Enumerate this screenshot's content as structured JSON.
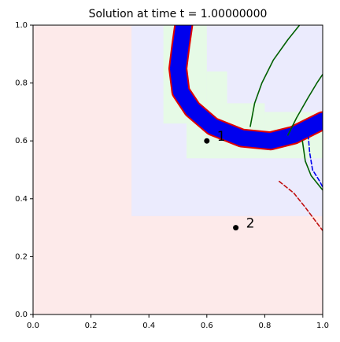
{
  "chart_data": {
    "type": "line",
    "title": "Solution at time t =     1.00000000",
    "xlim": [
      0,
      1
    ],
    "ylim": [
      0,
      1
    ],
    "xticks": [
      {
        "value": 0,
        "label": "0.0"
      },
      0.2,
      0.4,
      0.6,
      0.8,
      {
        "value": 1,
        "label": "1.0"
      }
    ],
    "yticks": [
      {
        "value": 0,
        "label": "0.0"
      },
      0.2,
      0.4,
      0.6,
      0.8,
      {
        "value": 1,
        "label": "1.0"
      }
    ],
    "background": "#fdeaea",
    "regions": [
      {
        "x": [
          0.34,
          1
        ],
        "y": [
          0.34,
          1
        ],
        "color": "#ebebfd"
      },
      {
        "x": [
          0.45,
          0.6
        ],
        "y": [
          0.66,
          1
        ],
        "color": "#e6fae6"
      },
      {
        "x": [
          0.6,
          0.67
        ],
        "y": [
          0.54,
          0.84
        ],
        "color": "#e6fae6"
      },
      {
        "x": [
          0.53,
          0.8
        ],
        "y": [
          0.54,
          0.73
        ],
        "color": "#e6fae6"
      },
      {
        "x": [
          0.8,
          1
        ],
        "y": [
          0.54,
          0.7
        ],
        "color": "#e6fae6"
      }
    ],
    "series": [
      {
        "x": [
          0.52,
          0.51,
          0.5,
          0.51,
          0.55,
          0.62,
          0.72,
          0.82,
          0.9,
          1.0
        ],
        "y": [
          1.0,
          0.93,
          0.85,
          0.77,
          0.71,
          0.65,
          0.61,
          0.6,
          0.62,
          0.67
        ],
        "color": "#0000ee",
        "edgecolor": "#e00000",
        "band": true
      },
      {
        "x": [
          0.75,
          0.765,
          0.79,
          0.83,
          0.88,
          0.92
        ],
        "y": [
          0.65,
          0.73,
          0.8,
          0.88,
          0.95,
          1.0
        ],
        "color": "#006000"
      },
      {
        "x": [
          0.88,
          0.91,
          0.95,
          0.98,
          1.0
        ],
        "y": [
          0.62,
          0.68,
          0.75,
          0.8,
          0.83
        ],
        "color": "#006000"
      },
      {
        "x": [
          0.93,
          0.94,
          0.96,
          1.0
        ],
        "y": [
          0.6,
          0.53,
          0.48,
          0.43
        ],
        "color": "#006000"
      },
      {
        "x": [
          0.95,
          0.955,
          0.965,
          0.99,
          1.0
        ],
        "y": [
          0.62,
          0.56,
          0.5,
          0.46,
          0.44
        ],
        "color": "#0000ee",
        "dashed": true
      },
      {
        "x": [
          0.85,
          0.9,
          0.94,
          0.97,
          1.0
        ],
        "y": [
          0.46,
          0.42,
          0.37,
          0.33,
          0.29
        ],
        "color": "#c01010",
        "dashed": true
      }
    ],
    "points": [
      {
        "x": 0.6,
        "y": 0.6,
        "label": "1"
      },
      {
        "x": 0.7,
        "y": 0.3,
        "label": "2"
      }
    ]
  }
}
